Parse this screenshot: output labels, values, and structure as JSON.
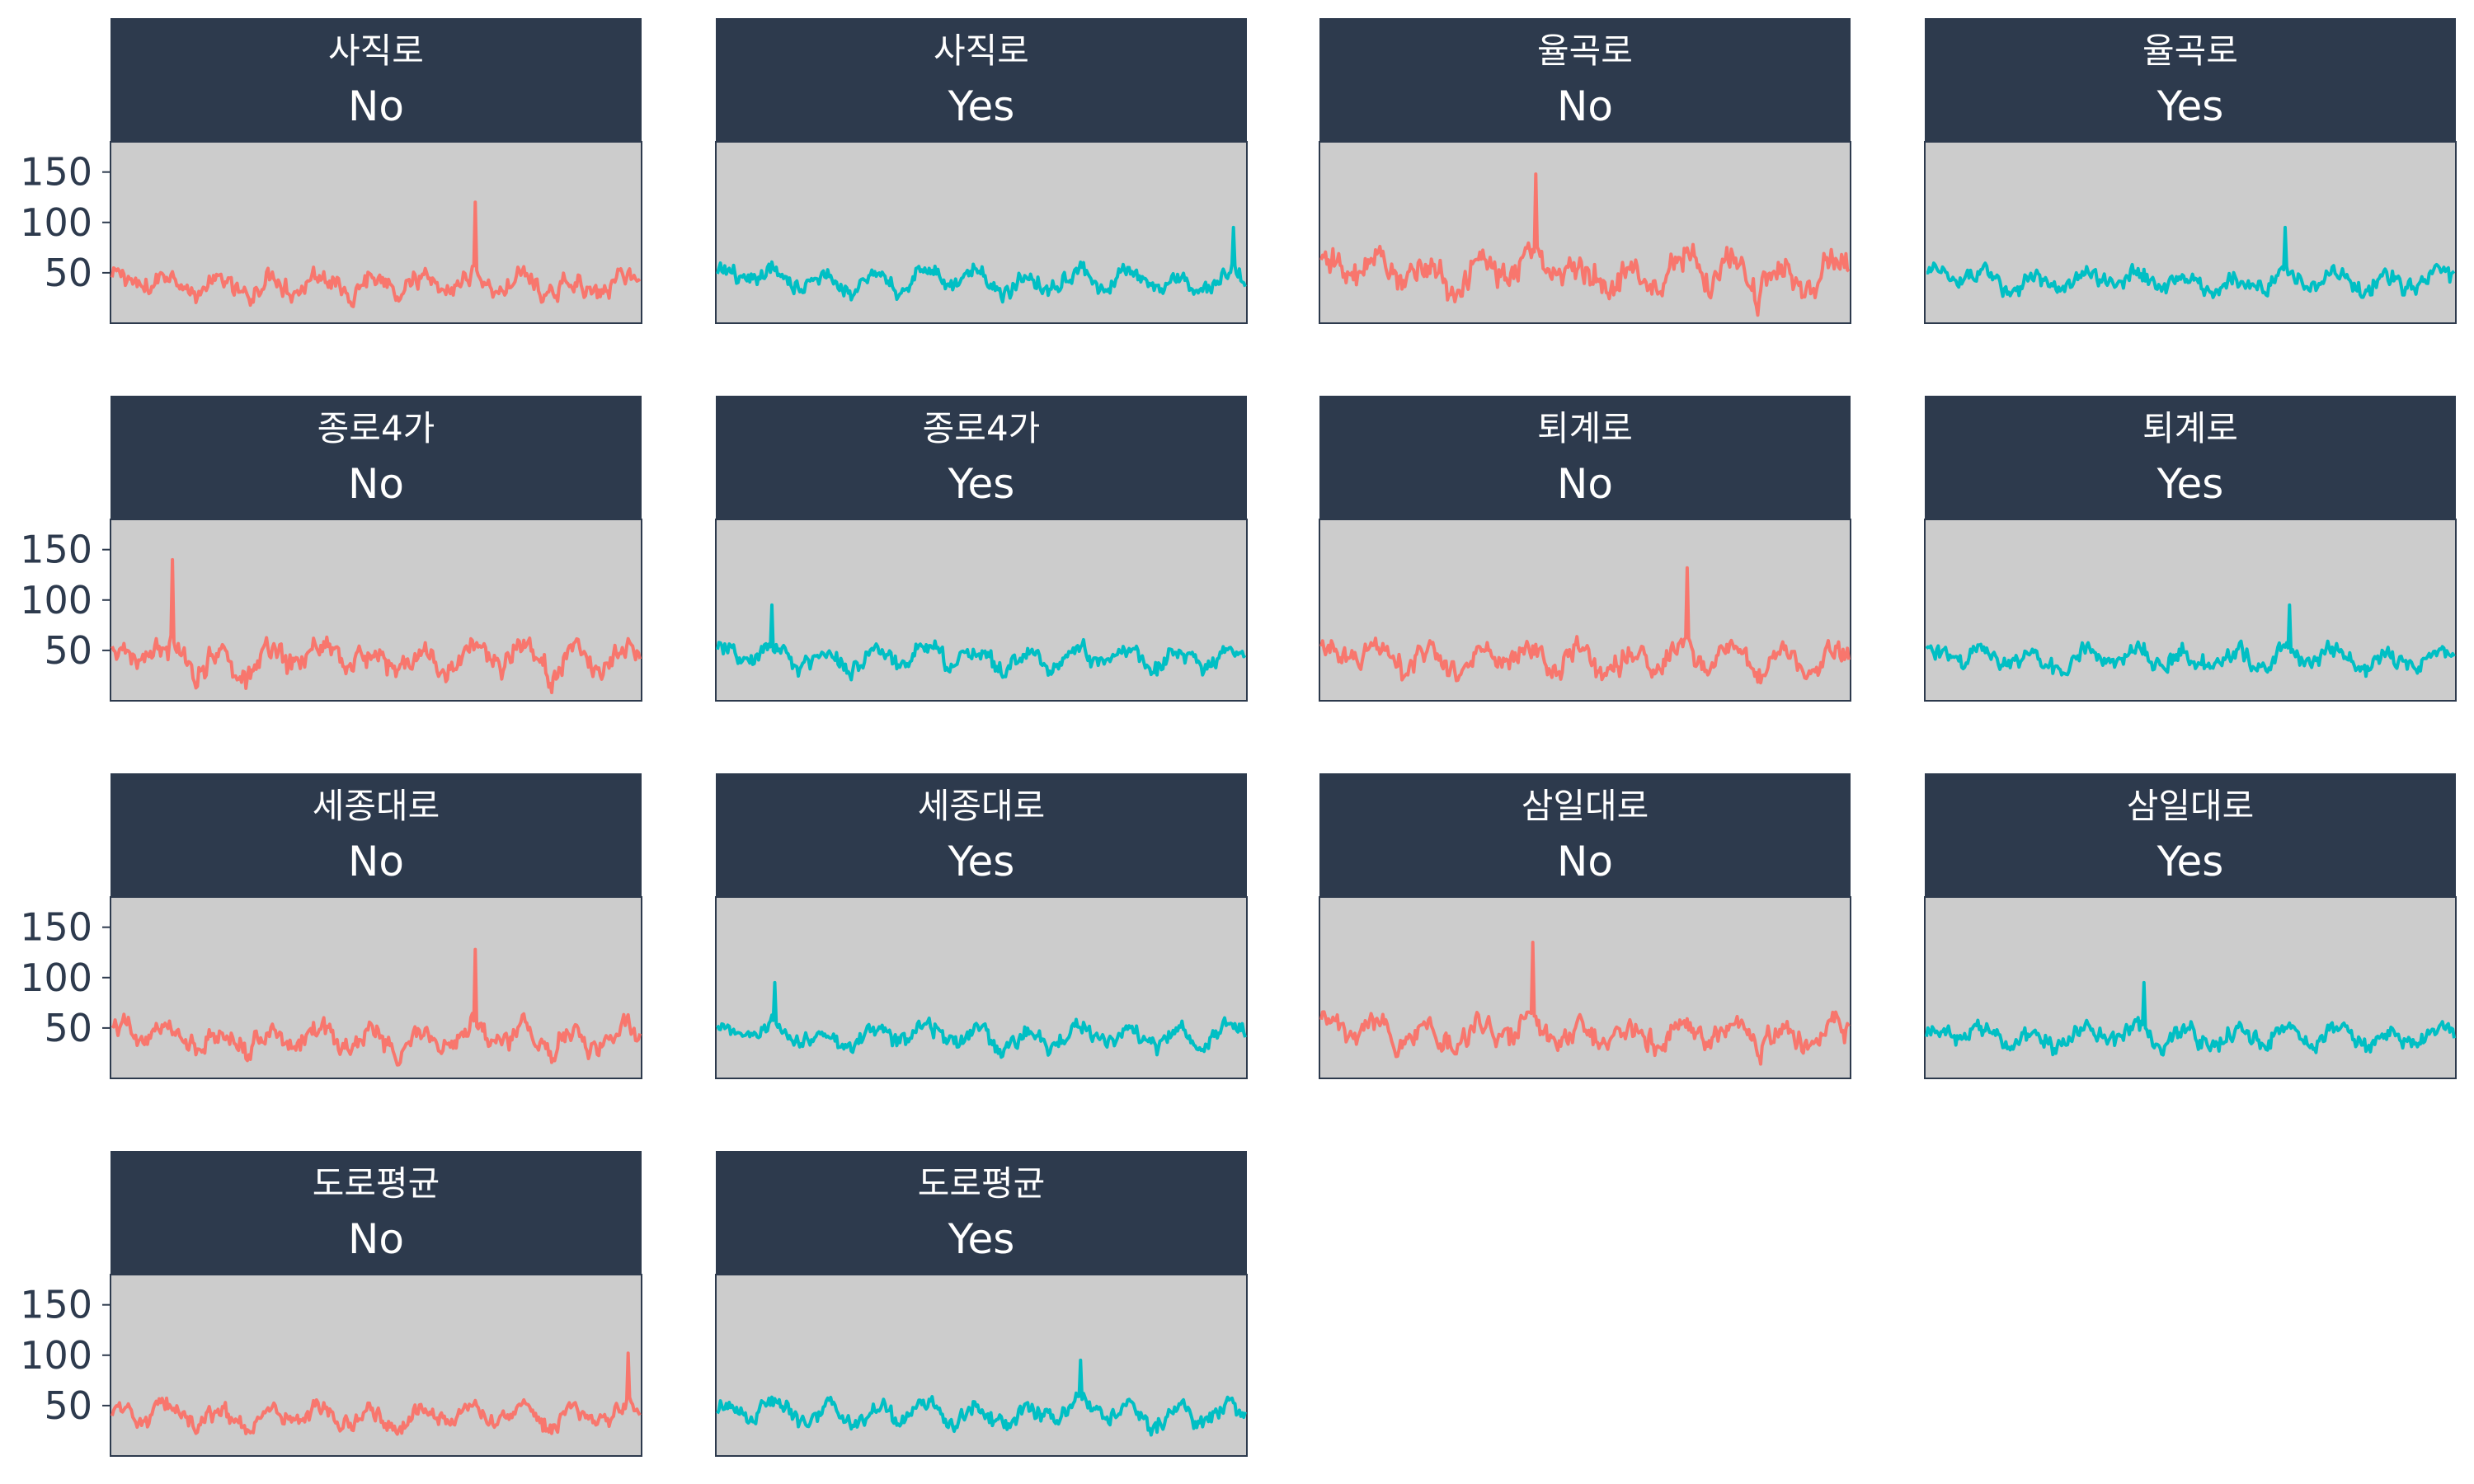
{
  "chart_data": {
    "type": "line",
    "title": "",
    "xlabel": "",
    "ylabel": "",
    "ylim": [
      0,
      180
    ],
    "yticks": [
      50,
      100,
      150
    ],
    "ytick_labels": [
      "50",
      "100",
      "150"
    ],
    "grid": false,
    "layout": "facet grid, 4 columns",
    "colors": {
      "No": "#f8766d",
      "Yes": "#00bfc4",
      "strip": "#2d3a4d",
      "panel_bg": "#cccccc"
    },
    "facets": [
      {
        "road": "사직로",
        "status": "No",
        "summary": {
          "mean": 38,
          "spread": 16,
          "max": 120
        }
      },
      {
        "road": "사직로",
        "status": "Yes",
        "summary": {
          "mean": 42,
          "spread": 14,
          "max": 95
        }
      },
      {
        "road": "율곡로",
        "status": "No",
        "summary": {
          "mean": 50,
          "spread": 24,
          "max": 148
        }
      },
      {
        "road": "율곡로",
        "status": "Yes",
        "summary": {
          "mean": 42,
          "spread": 14,
          "max": 95
        }
      },
      {
        "road": "종로4가",
        "status": "No",
        "summary": {
          "mean": 42,
          "spread": 20,
          "max": 140
        }
      },
      {
        "road": "종로4가",
        "status": "Yes",
        "summary": {
          "mean": 42,
          "spread": 14,
          "max": 95
        }
      },
      {
        "road": "퇴계로",
        "status": "No",
        "summary": {
          "mean": 42,
          "spread": 18,
          "max": 132
        }
      },
      {
        "road": "퇴계로",
        "status": "Yes",
        "summary": {
          "mean": 42,
          "spread": 14,
          "max": 95
        }
      },
      {
        "road": "세종대로",
        "status": "No",
        "summary": {
          "mean": 40,
          "spread": 17,
          "max": 128
        }
      },
      {
        "road": "세종대로",
        "status": "Yes",
        "summary": {
          "mean": 42,
          "spread": 14,
          "max": 95
        }
      },
      {
        "road": "삼일대로",
        "status": "No",
        "summary": {
          "mean": 44,
          "spread": 18,
          "max": 135
        }
      },
      {
        "road": "삼일대로",
        "status": "Yes",
        "summary": {
          "mean": 42,
          "spread": 14,
          "max": 95
        }
      },
      {
        "road": "도로평균",
        "status": "No",
        "summary": {
          "mean": 40,
          "spread": 13,
          "max": 102
        }
      },
      {
        "road": "도로평균",
        "status": "Yes",
        "summary": {
          "mean": 42,
          "spread": 14,
          "max": 95
        }
      }
    ]
  }
}
